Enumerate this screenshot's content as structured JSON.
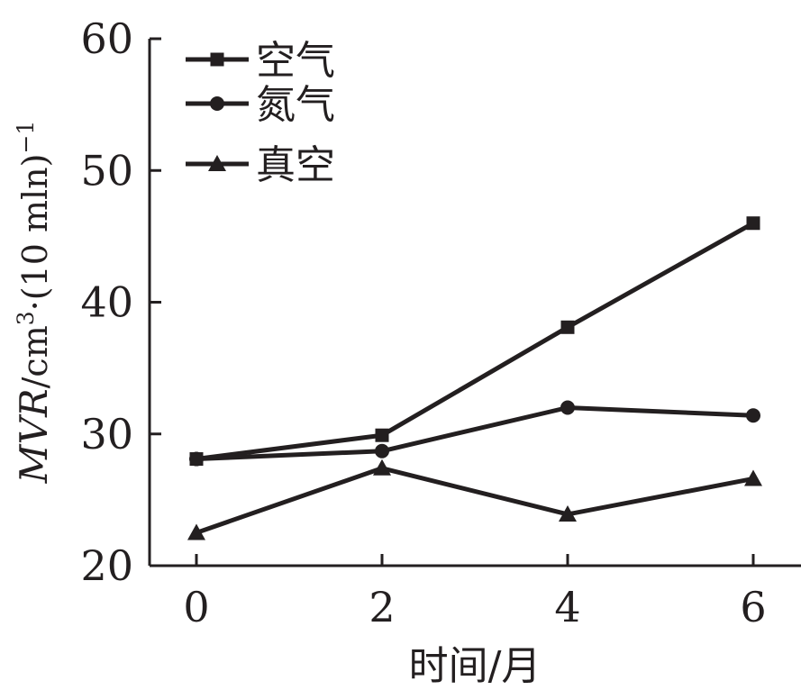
{
  "chart_data": {
    "type": "line",
    "x": [
      0,
      2,
      4,
      6
    ],
    "x_ticks": [
      "0",
      "2",
      "4",
      "6"
    ],
    "y_ticks": [
      "20",
      "30",
      "40",
      "50",
      "60"
    ],
    "xlim": [
      -0.5,
      6.5
    ],
    "ylim": [
      20,
      60
    ],
    "xlabel": "时间/月",
    "ylabel": {
      "var": "MVR",
      "unit_a": "/cm",
      "sup_a": "3",
      "unit_b": "·(10 mln)",
      "sup_b": "−1"
    },
    "grid": false,
    "legend_position": "top-left",
    "line_color": "#231f20",
    "series": [
      {
        "name": "空气",
        "marker": "square",
        "values": [
          28.1,
          29.9,
          38.1,
          46.0
        ]
      },
      {
        "name": "氮气",
        "marker": "circle",
        "values": [
          28.1,
          28.7,
          32.0,
          31.4
        ]
      },
      {
        "name": "真空",
        "marker": "triangle",
        "values": [
          22.5,
          27.4,
          23.9,
          26.6
        ]
      }
    ]
  }
}
